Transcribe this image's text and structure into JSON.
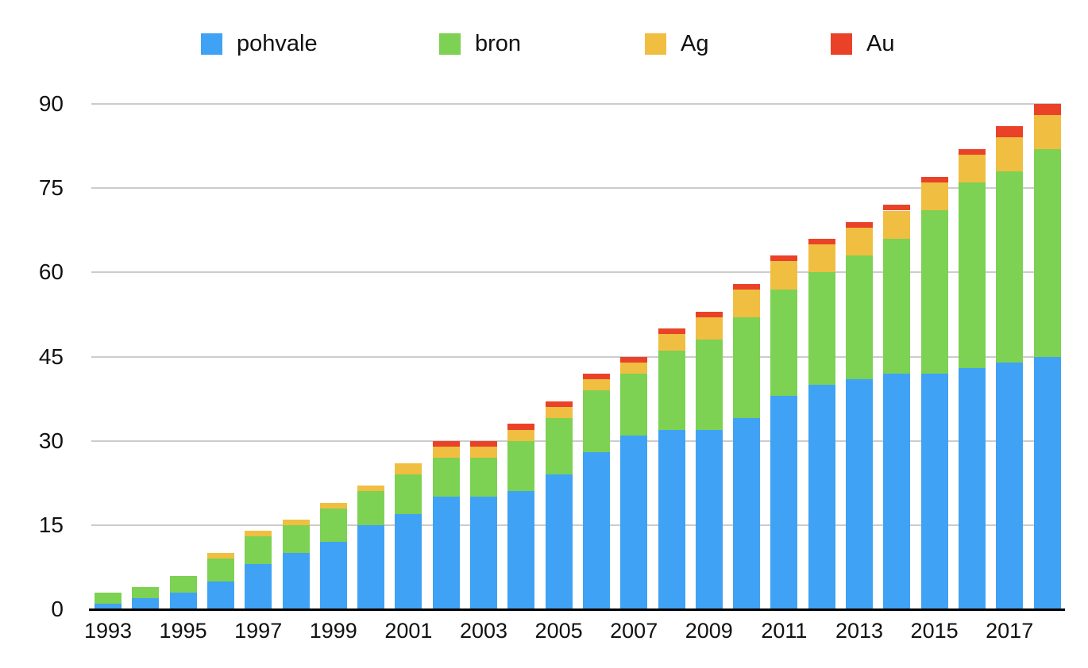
{
  "chart_data": {
    "type": "bar",
    "stacked": true,
    "title": "",
    "xlabel": "",
    "ylabel": "",
    "categories": [
      "1993",
      "1994",
      "1995",
      "1996",
      "1997",
      "1998",
      "1999",
      "2000",
      "2001",
      "2002",
      "2003",
      "2004",
      "2005",
      "2006",
      "2007",
      "2008",
      "2009",
      "2010",
      "2011",
      "2012",
      "2013",
      "2014",
      "2015",
      "2016",
      "2017",
      "2018"
    ],
    "series": [
      {
        "name": "pohvale",
        "color": "#3FA2F5",
        "values": [
          1,
          2,
          3,
          5,
          8,
          10,
          12,
          15,
          17,
          20,
          20,
          21,
          24,
          28,
          31,
          32,
          32,
          34,
          38,
          40,
          41,
          42,
          42,
          43,
          44,
          45
        ]
      },
      {
        "name": "bron",
        "color": "#7DD153",
        "values": [
          2,
          2,
          3,
          4,
          5,
          5,
          6,
          6,
          7,
          7,
          7,
          9,
          10,
          11,
          11,
          14,
          16,
          18,
          19,
          20,
          22,
          24,
          29,
          33,
          34,
          37
        ]
      },
      {
        "name": "Ag",
        "color": "#F0BE41",
        "values": [
          0,
          0,
          0,
          1,
          1,
          1,
          1,
          1,
          2,
          2,
          2,
          2,
          2,
          2,
          2,
          3,
          4,
          5,
          5,
          5,
          5,
          5,
          5,
          5,
          6,
          6
        ]
      },
      {
        "name": "Au",
        "color": "#EA4228",
        "values": [
          0,
          0,
          0,
          0,
          0,
          0,
          0,
          0,
          0,
          1,
          1,
          1,
          1,
          1,
          1,
          1,
          1,
          1,
          1,
          1,
          1,
          1,
          1,
          1,
          2,
          2
        ]
      }
    ],
    "totals": [
      3,
      4,
      6,
      10,
      14,
      16,
      19,
      22,
      26,
      30,
      30,
      33,
      37,
      42,
      45,
      50,
      53,
      58,
      63,
      66,
      69,
      72,
      77,
      82,
      86,
      90
    ],
    "ylim": [
      0,
      90
    ],
    "y_ticks": [
      0,
      15,
      30,
      45,
      60,
      75,
      90
    ],
    "x_tick_labels": [
      "1993",
      "1995",
      "1997",
      "1999",
      "2001",
      "2003",
      "2005",
      "2007",
      "2009",
      "2011",
      "2013",
      "2015",
      "2017"
    ],
    "legend_position": "top",
    "grid": "horizontal"
  },
  "colors": {
    "background": "#FFFFFF",
    "gridline": "#CCCCCC",
    "axis_line": "#000000",
    "label_text": "#111111"
  }
}
